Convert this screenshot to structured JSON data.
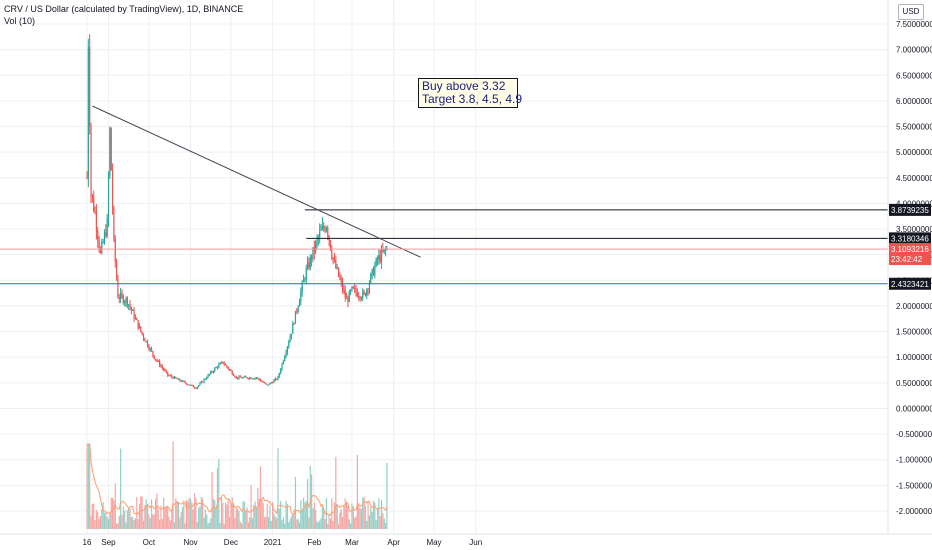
{
  "header": {
    "title": "CRV / US Dollar (calculated by TradingView), 1D, BINANCE",
    "indicator": "Vol (10)"
  },
  "currency": "USD",
  "annotation": {
    "line1": "Buy above 3.32",
    "line2": "Target 3.8, 4.5, 4.9"
  },
  "price_axis": {
    "ticks": [
      "7.5000000",
      "7.0000000",
      "6.5000000",
      "6.0000000",
      "5.5000000",
      "5.0000000",
      "4.5000000",
      "4.0000000",
      "3.5000000",
      "3.0000000",
      "2.5000000",
      "2.0000000",
      "1.5000000",
      "1.0000000",
      "0.5000000",
      "0.0000000",
      "-0.5000000",
      "-1.0000000",
      "-1.5000000",
      "-2.0000000"
    ]
  },
  "time_axis": {
    "labels": [
      "16",
      "Sep",
      "Oct",
      "Nov",
      "Dec",
      "2021",
      "Feb",
      "Mar",
      "Apr",
      "May",
      "Jun"
    ]
  },
  "level_labels": {
    "resistance_top": "3.8739235",
    "resistance_mid": "3.3180346",
    "last_price": "3.1093216",
    "countdown": "23:42:42",
    "support": "2.4323421"
  },
  "colors": {
    "up": "#26a69a",
    "down": "#ef5350",
    "trendline": "#434651",
    "level_line": "#131722",
    "support_line": "#2962ff",
    "last_price_line": "#ef9a9a",
    "volume_ma": "#ff9e6e",
    "grid": "#eef0f3"
  },
  "chart_data": {
    "type": "candlestick",
    "symbol": "CRV/USD",
    "interval": "1D",
    "ylim": [
      -2.3,
      7.9
    ],
    "y_ticks": [
      7.5,
      7,
      6.5,
      6,
      5.5,
      5,
      4.5,
      4,
      3.5,
      3,
      2.5,
      2,
      1.5,
      1,
      0.5,
      0,
      -0.5,
      -1,
      -1.5,
      -2
    ],
    "x_labels": [
      "16",
      "Sep",
      "Oct",
      "Nov",
      "Dec",
      "2021",
      "Feb",
      "Mar",
      "Apr",
      "May",
      "Jun"
    ],
    "horizontal_levels": [
      3.8739235,
      3.3180346,
      2.4323421
    ],
    "last_price": 3.1093216,
    "trendline": {
      "start": {
        "date": "2020-08-20",
        "price": 5.9
      },
      "end": {
        "date": "2021-04-21",
        "price": 2.95
      }
    },
    "approx_close_path": [
      {
        "date": "2020-08-16",
        "close": 4.5
      },
      {
        "date": "2020-08-17",
        "close": 7.2
      },
      {
        "date": "2020-08-19",
        "close": 4.2
      },
      {
        "date": "2020-08-22",
        "close": 3.8
      },
      {
        "date": "2020-08-26",
        "close": 3.0
      },
      {
        "date": "2020-08-31",
        "close": 3.6
      },
      {
        "date": "2020-09-02",
        "close": 5.4
      },
      {
        "date": "2020-09-05",
        "close": 3.2
      },
      {
        "date": "2020-09-08",
        "close": 2.2
      },
      {
        "date": "2020-09-15",
        "close": 2.1
      },
      {
        "date": "2020-09-25",
        "close": 1.5
      },
      {
        "date": "2020-10-05",
        "close": 1.0
      },
      {
        "date": "2020-10-15",
        "close": 0.65
      },
      {
        "date": "2020-10-28",
        "close": 0.5
      },
      {
        "date": "2020-11-05",
        "close": 0.4
      },
      {
        "date": "2020-11-20",
        "close": 0.8
      },
      {
        "date": "2020-11-25",
        "close": 0.9
      },
      {
        "date": "2020-12-05",
        "close": 0.6
      },
      {
        "date": "2020-12-20",
        "close": 0.6
      },
      {
        "date": "2020-12-28",
        "close": 0.45
      },
      {
        "date": "2021-01-05",
        "close": 0.6
      },
      {
        "date": "2021-01-15",
        "close": 1.5
      },
      {
        "date": "2021-01-25",
        "close": 2.6
      },
      {
        "date": "2021-02-05",
        "close": 3.4
      },
      {
        "date": "2021-02-10",
        "close": 3.6
      },
      {
        "date": "2021-02-15",
        "close": 2.9
      },
      {
        "date": "2021-02-25",
        "close": 2.1
      },
      {
        "date": "2021-03-01",
        "close": 2.3
      },
      {
        "date": "2021-03-10",
        "close": 2.2
      },
      {
        "date": "2021-03-20",
        "close": 2.9
      },
      {
        "date": "2021-03-27",
        "close": 3.11
      }
    ]
  }
}
